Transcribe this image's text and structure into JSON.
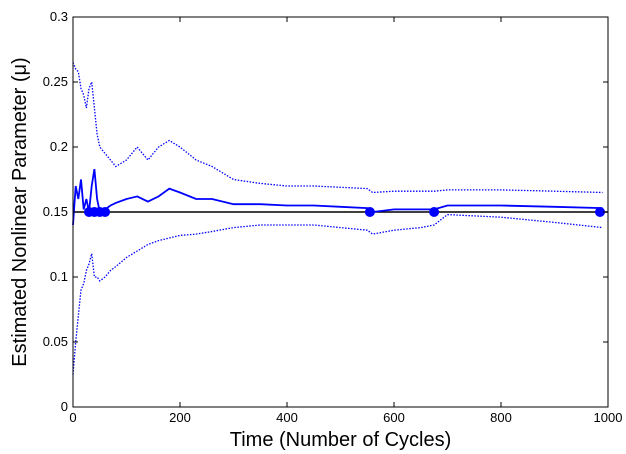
{
  "chart_data": {
    "type": "line",
    "title": "",
    "xlabel": "Time (Number of Cycles)",
    "ylabel": "Estimated Nonlinear Parameter (μ)",
    "xlim": [
      0,
      1000
    ],
    "ylim": [
      0,
      0.3
    ],
    "xticks": [
      0,
      200,
      400,
      600,
      800,
      1000
    ],
    "xtick_labels": [
      "0",
      "200",
      "400",
      "600",
      "800",
      "1000"
    ],
    "yticks": [
      0,
      0.05,
      0.1,
      0.15,
      0.2,
      0.25,
      0.3
    ],
    "ytick_labels": [
      "0",
      "0.05",
      "0.1",
      "0.15",
      "0.2",
      "0.25",
      "0.3"
    ],
    "grid": false,
    "colors": {
      "estimate": "#0000ff",
      "truth": "#000000"
    },
    "series": [
      {
        "role": "true-value",
        "style": "solid-black",
        "x": [
          0,
          1000
        ],
        "y": [
          0.15,
          0.15
        ]
      },
      {
        "role": "estimate",
        "style": "solid",
        "x": [
          0,
          5,
          10,
          15,
          20,
          25,
          30,
          35,
          40,
          45,
          50,
          60,
          70,
          80,
          100,
          120,
          140,
          160,
          180,
          200,
          230,
          260,
          300,
          350,
          400,
          450,
          500,
          550,
          560,
          600,
          650,
          675,
          700,
          750,
          800,
          900,
          990
        ],
        "y": [
          0.14,
          0.17,
          0.16,
          0.175,
          0.152,
          0.16,
          0.15,
          0.17,
          0.183,
          0.16,
          0.15,
          0.152,
          0.155,
          0.157,
          0.16,
          0.162,
          0.158,
          0.162,
          0.168,
          0.165,
          0.16,
          0.16,
          0.156,
          0.156,
          0.155,
          0.155,
          0.154,
          0.153,
          0.15,
          0.152,
          0.152,
          0.152,
          0.155,
          0.155,
          0.155,
          0.154,
          0.153
        ]
      },
      {
        "role": "upper-bound",
        "style": "dotted",
        "x": [
          0,
          5,
          10,
          15,
          20,
          25,
          30,
          35,
          40,
          45,
          50,
          60,
          70,
          80,
          100,
          120,
          140,
          160,
          180,
          200,
          230,
          260,
          300,
          350,
          400,
          450,
          500,
          550,
          560,
          600,
          650,
          675,
          700,
          750,
          800,
          900,
          990
        ],
        "y": [
          0.265,
          0.26,
          0.258,
          0.245,
          0.24,
          0.23,
          0.245,
          0.25,
          0.23,
          0.21,
          0.2,
          0.195,
          0.19,
          0.185,
          0.19,
          0.2,
          0.19,
          0.2,
          0.205,
          0.2,
          0.19,
          0.185,
          0.175,
          0.172,
          0.17,
          0.17,
          0.169,
          0.168,
          0.165,
          0.166,
          0.166,
          0.166,
          0.167,
          0.167,
          0.167,
          0.166,
          0.165
        ]
      },
      {
        "role": "lower-bound",
        "style": "dotted",
        "x": [
          0,
          5,
          10,
          15,
          20,
          25,
          30,
          35,
          40,
          45,
          50,
          60,
          70,
          80,
          100,
          120,
          140,
          160,
          180,
          200,
          230,
          260,
          300,
          350,
          400,
          450,
          500,
          550,
          560,
          600,
          650,
          675,
          700,
          750,
          800,
          900,
          990
        ],
        "y": [
          0.025,
          0.05,
          0.07,
          0.09,
          0.095,
          0.105,
          0.11,
          0.118,
          0.1,
          0.1,
          0.097,
          0.1,
          0.105,
          0.108,
          0.115,
          0.12,
          0.125,
          0.128,
          0.13,
          0.132,
          0.133,
          0.135,
          0.138,
          0.14,
          0.14,
          0.14,
          0.138,
          0.136,
          0.133,
          0.136,
          0.138,
          0.14,
          0.148,
          0.147,
          0.146,
          0.142,
          0.138
        ]
      }
    ],
    "markers": {
      "x": [
        30,
        40,
        50,
        60,
        555,
        675,
        985
      ],
      "y": [
        0.15,
        0.15,
        0.15,
        0.15,
        0.15,
        0.15,
        0.15
      ]
    }
  }
}
